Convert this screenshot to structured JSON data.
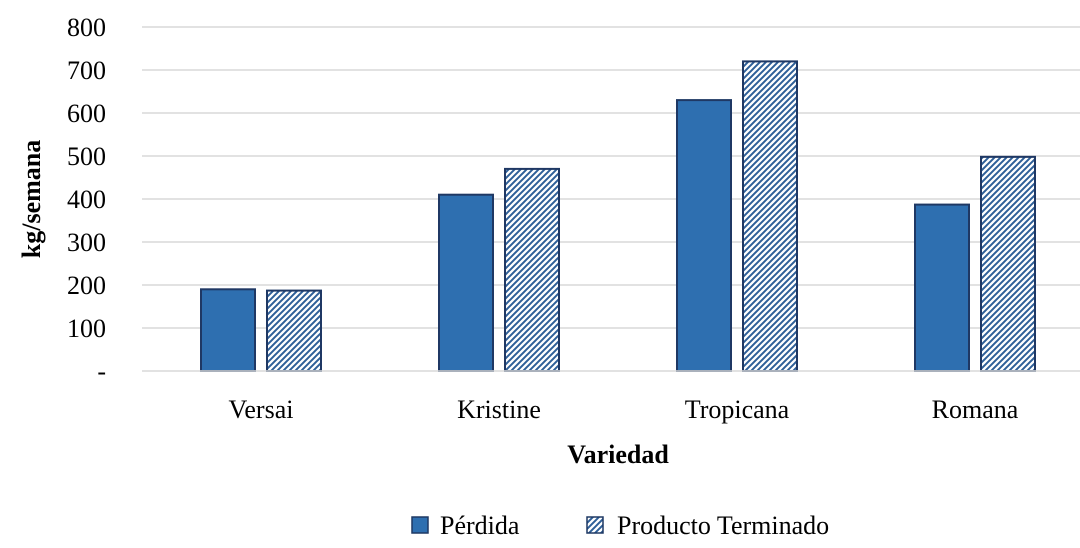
{
  "chart_data": {
    "type": "bar",
    "title": "",
    "xlabel": "Variedad",
    "ylabel": "kg/semana",
    "categories": [
      "Versai",
      "Kristine",
      "Tropicana",
      "Romana"
    ],
    "series": [
      {
        "name": "Pérdida",
        "values": [
          190,
          410,
          630,
          387
        ],
        "color": "#2e6fb0",
        "pattern": "solid"
      },
      {
        "name": "Producto Terminado",
        "values": [
          187,
          470,
          720,
          498
        ],
        "color": "#1f3864",
        "pattern": "hatch"
      }
    ],
    "ylim": [
      0,
      800
    ],
    "yticks": [
      0,
      100,
      200,
      300,
      400,
      500,
      600,
      700,
      800
    ],
    "ytick_labels": [
      "-",
      "100",
      "200",
      "300",
      "400",
      "500",
      "600",
      "700",
      "800"
    ],
    "grid": true,
    "legend_position": "bottom"
  }
}
